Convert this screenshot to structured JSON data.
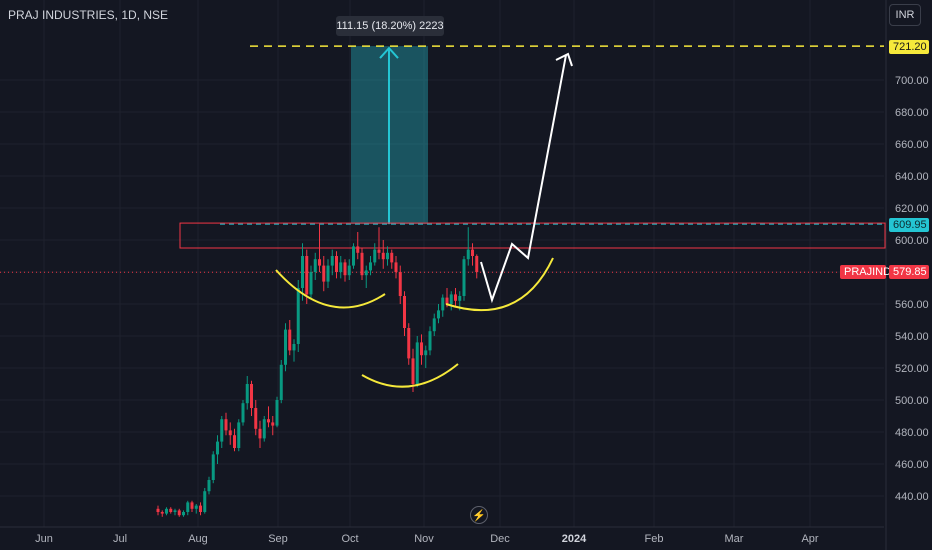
{
  "header": {
    "title": "PRAJ INDUSTRIES, 1D, NSE",
    "currency": "INR"
  },
  "measure": {
    "label": "111.15 (18.20%) 2223"
  },
  "tags": {
    "target": "721.20",
    "resistance": "609.95",
    "symbol": "PRAJIND",
    "last_price": "579.85"
  },
  "icons": {
    "replay": "lightning-icon"
  },
  "chart_data": {
    "type": "candlestick",
    "title": "PRAJ INDUSTRIES, 1D, NSE",
    "x_ticks": [
      "Jun",
      "Jul",
      "Aug",
      "Sep",
      "Oct",
      "Nov",
      "Dec",
      "2024",
      "Feb",
      "Mar",
      "Apr"
    ],
    "y_ticks": [
      440,
      460,
      480,
      500,
      520,
      540,
      560,
      580,
      600,
      620,
      640,
      660,
      680,
      700
    ],
    "ylim": [
      426,
      731
    ],
    "colors": {
      "up": "#089981",
      "down": "#f23645",
      "background": "#141722"
    },
    "last_price": 579.85,
    "levels": {
      "target": 721.2,
      "resistance": 609.95,
      "zone_low": 595
    },
    "measure": {
      "from": 609.95,
      "to": 721.2,
      "change": 111.15,
      "percent": "18.20%",
      "ticks": 2223
    },
    "candles": [
      [
        0,
        432,
        434,
        428,
        430
      ],
      [
        1,
        430,
        431,
        427,
        429
      ],
      [
        2,
        429,
        433,
        428,
        432
      ],
      [
        3,
        432,
        433,
        429,
        430
      ],
      [
        4,
        430,
        432,
        428,
        431
      ],
      [
        5,
        431,
        432,
        427,
        428
      ],
      [
        6,
        428,
        431,
        427,
        430
      ],
      [
        7,
        430,
        437,
        428,
        436
      ],
      [
        8,
        436,
        437,
        430,
        432
      ],
      [
        9,
        432,
        435,
        429,
        434
      ],
      [
        10,
        434,
        436,
        428,
        430
      ],
      [
        11,
        430,
        445,
        429,
        443
      ],
      [
        12,
        443,
        452,
        441,
        450
      ],
      [
        13,
        450,
        468,
        448,
        466
      ],
      [
        14,
        466,
        478,
        460,
        474
      ],
      [
        15,
        474,
        490,
        470,
        488
      ],
      [
        16,
        488,
        492,
        478,
        481
      ],
      [
        17,
        481,
        486,
        472,
        478
      ],
      [
        18,
        478,
        482,
        468,
        470
      ],
      [
        19,
        470,
        488,
        468,
        486
      ],
      [
        20,
        486,
        500,
        484,
        498
      ],
      [
        21,
        498,
        515,
        494,
        510
      ],
      [
        22,
        510,
        512,
        490,
        495
      ],
      [
        23,
        495,
        500,
        478,
        482
      ],
      [
        24,
        482,
        487,
        470,
        476
      ],
      [
        25,
        476,
        490,
        474,
        488
      ],
      [
        26,
        488,
        496,
        483,
        486
      ],
      [
        27,
        486,
        490,
        478,
        484
      ],
      [
        28,
        484,
        502,
        483,
        500
      ],
      [
        29,
        500,
        525,
        498,
        522
      ],
      [
        30,
        522,
        548,
        518,
        544
      ],
      [
        31,
        544,
        550,
        528,
        531
      ],
      [
        32,
        531,
        538,
        524,
        535
      ],
      [
        33,
        535,
        575,
        530,
        570
      ],
      [
        34,
        570,
        598,
        562,
        590
      ],
      [
        35,
        590,
        594,
        560,
        566
      ],
      [
        36,
        566,
        584,
        563,
        580
      ],
      [
        37,
        580,
        592,
        575,
        588
      ],
      [
        38,
        588,
        610,
        580,
        584
      ],
      [
        39,
        584,
        590,
        568,
        574
      ],
      [
        40,
        574,
        588,
        570,
        584
      ],
      [
        41,
        584,
        594,
        578,
        590
      ],
      [
        42,
        590,
        593,
        576,
        580
      ],
      [
        43,
        580,
        590,
        576,
        586
      ],
      [
        44,
        586,
        588,
        574,
        578
      ],
      [
        45,
        578,
        588,
        575,
        584
      ],
      [
        46,
        584,
        598,
        582,
        596
      ],
      [
        47,
        596,
        605,
        588,
        592
      ],
      [
        48,
        592,
        595,
        575,
        578
      ],
      [
        49,
        578,
        584,
        570,
        581
      ],
      [
        50,
        581,
        590,
        578,
        586
      ],
      [
        51,
        586,
        598,
        584,
        594
      ],
      [
        52,
        594,
        608,
        588,
        592
      ],
      [
        53,
        592,
        600,
        582,
        588
      ],
      [
        54,
        588,
        596,
        584,
        592
      ],
      [
        55,
        592,
        594,
        582,
        586
      ],
      [
        56,
        586,
        590,
        576,
        580
      ],
      [
        57,
        580,
        584,
        560,
        565
      ],
      [
        58,
        565,
        568,
        540,
        545
      ],
      [
        59,
        545,
        548,
        522,
        526
      ],
      [
        60,
        526,
        532,
        505,
        510
      ],
      [
        61,
        510,
        540,
        508,
        536
      ],
      [
        62,
        536,
        541,
        522,
        528
      ],
      [
        63,
        528,
        534,
        520,
        531
      ],
      [
        64,
        531,
        546,
        528,
        543
      ],
      [
        65,
        543,
        554,
        540,
        551
      ],
      [
        66,
        551,
        560,
        548,
        556
      ],
      [
        67,
        556,
        566,
        552,
        564
      ],
      [
        68,
        564,
        570,
        558,
        560
      ],
      [
        69,
        560,
        568,
        556,
        566
      ],
      [
        70,
        566,
        570,
        558,
        562
      ],
      [
        71,
        562,
        568,
        556,
        565
      ],
      [
        72,
        565,
        590,
        562,
        588
      ],
      [
        73,
        588,
        608,
        584,
        594
      ],
      [
        74,
        594,
        598,
        584,
        590
      ],
      [
        75,
        590,
        591,
        576,
        580
      ]
    ]
  }
}
